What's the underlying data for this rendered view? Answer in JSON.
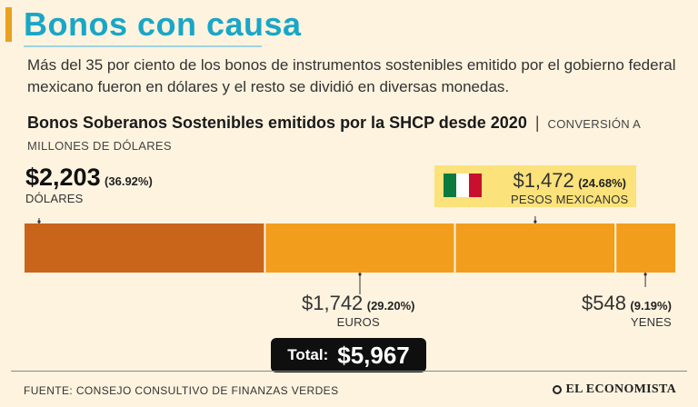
{
  "header": {
    "title": "Bonos con causa",
    "intro": "Más del 35 por ciento de los bonos de instrumentos sostenibles emitido por el gobierno federal mexicano fueron en dólares y el resto se dividió en diversas monedas."
  },
  "chart_data": {
    "type": "bar",
    "orientation": "horizontal-stacked",
    "title": "Bonos Soberanos Sostenibles emitidos por la SHCP desde 2020",
    "subtitle": "CONVERSIÓN A MILLONES DE DÓLARES",
    "unit": "millones de dólares",
    "categories": [
      "DÓLARES",
      "EUROS",
      "PESOS MEXICANOS",
      "YENES"
    ],
    "values": [
      2203,
      1742,
      1472,
      548
    ],
    "percents": [
      36.92,
      29.2,
      24.68,
      9.19
    ],
    "amount_labels": [
      "$2,203",
      "$1,742",
      "$1,472",
      "$548"
    ],
    "percent_labels": [
      "(36.92%)",
      "(29.20%)",
      "(24.68%)",
      "(9.19%)"
    ],
    "colors": [
      "#c9641b",
      "#f29d1c",
      "#f29d1c",
      "#f29d1c"
    ],
    "total_label": "Total:",
    "total_value": "$5,967",
    "total": 5967
  },
  "flag_colors": [
    "#0b7a3e",
    "#ffffff",
    "#c8102e"
  ],
  "footer": {
    "source": "FUENTE: CONSEJO CONSULTIVO DE FINANZAS VERDES",
    "brand": "EL ECONOMISTA"
  }
}
